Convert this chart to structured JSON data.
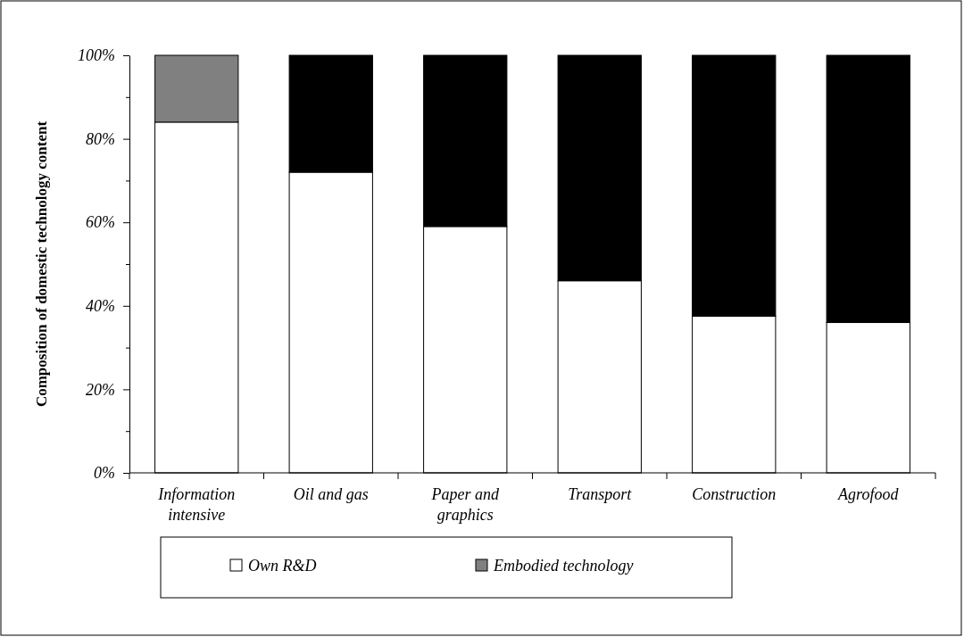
{
  "chart_data": {
    "type": "bar",
    "stacked": true,
    "ylabel": "Composition of domestic technology content",
    "categories": [
      "Information intensive",
      "Oil and gas",
      "Paper and graphics",
      "Transport",
      "Construction",
      "Agrofood"
    ],
    "series": [
      {
        "name": "Own R&D",
        "color": "#ffffff",
        "values": [
          84,
          72,
          59,
          46,
          37.5,
          36
        ]
      },
      {
        "name": "Embodied technology",
        "color": "#808080",
        "colors": [
          "#808080",
          "#000000",
          "#000000",
          "#000000",
          "#000000",
          "#000000"
        ],
        "values": [
          16,
          28,
          41,
          54,
          62.5,
          64
        ]
      }
    ],
    "ylim": [
      0,
      100
    ],
    "yticks": [
      {
        "value": 0,
        "label": "0%"
      },
      {
        "value": 10,
        "label": null
      },
      {
        "value": 20,
        "label": "20%"
      },
      {
        "value": 30,
        "label": null
      },
      {
        "value": 40,
        "label": "40%"
      },
      {
        "value": 50,
        "label": null
      },
      {
        "value": 60,
        "label": "60%"
      },
      {
        "value": 70,
        "label": null
      },
      {
        "value": 80,
        "label": "80%"
      },
      {
        "value": 90,
        "label": null
      },
      {
        "value": 100,
        "label": "100%"
      }
    ],
    "grid": false,
    "legend": "bottom"
  }
}
